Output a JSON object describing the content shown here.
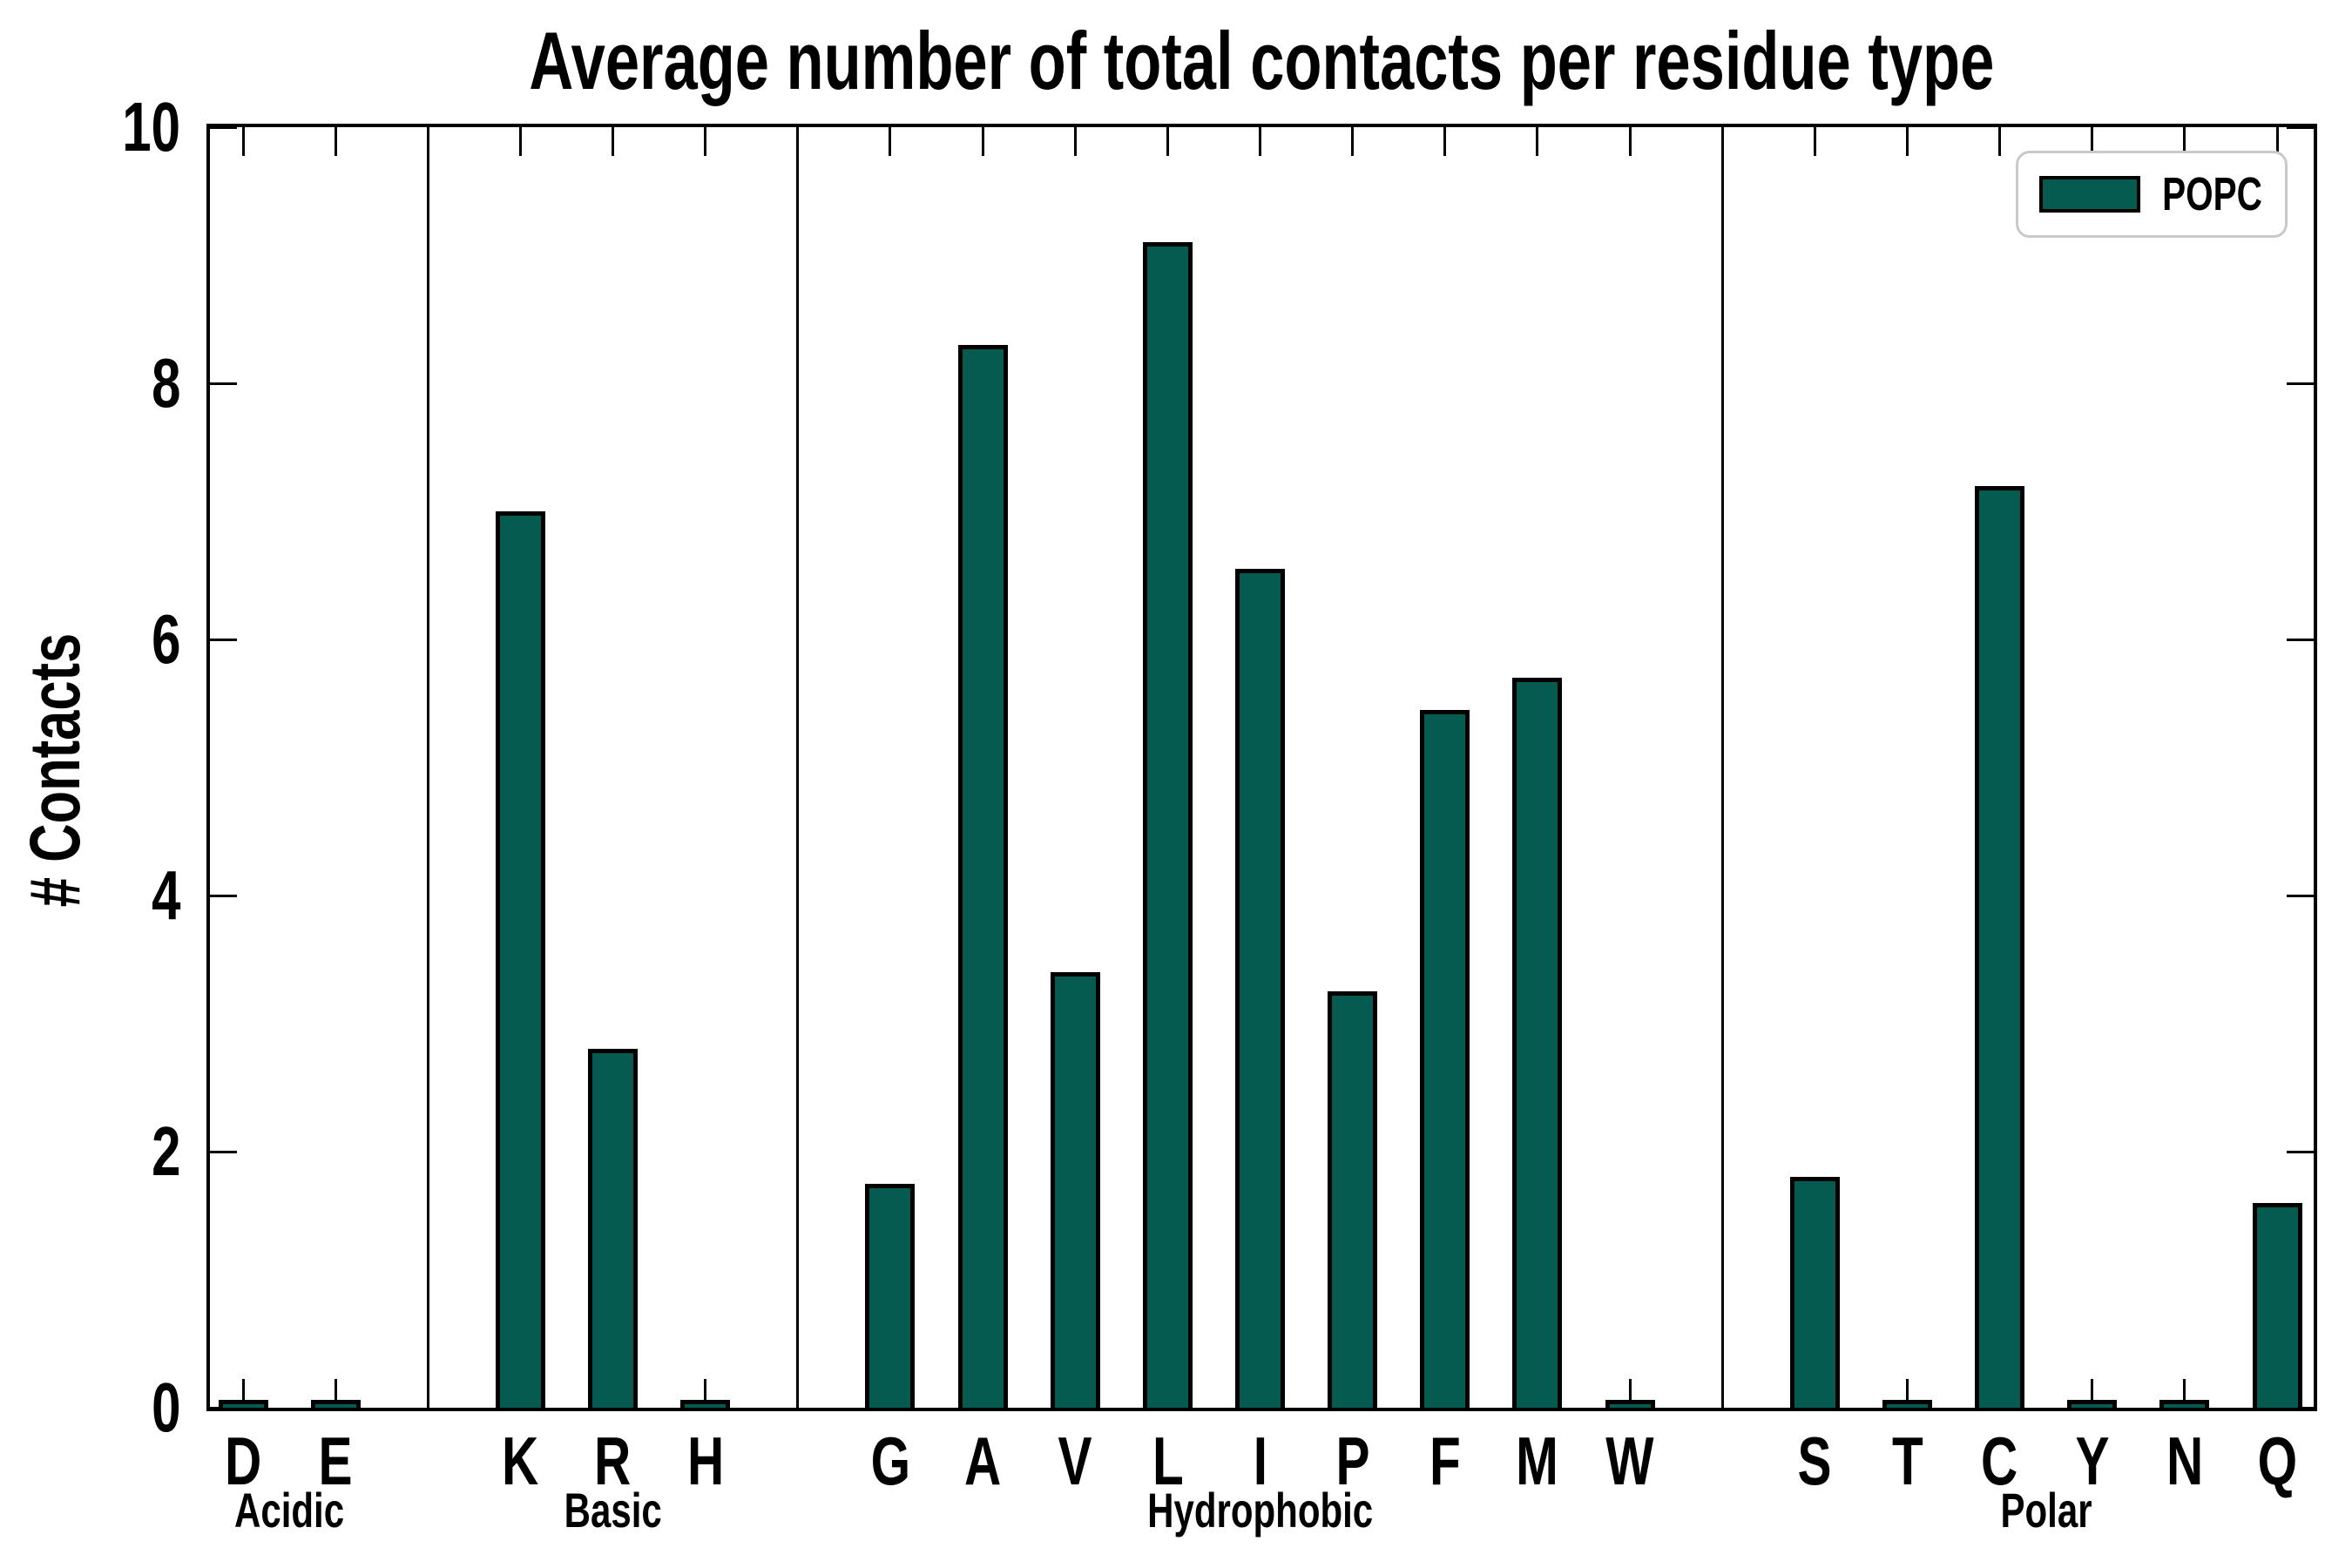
{
  "chart_data": {
    "type": "bar",
    "title": "Average number of total contacts per residue type",
    "ylabel": "# Contacts",
    "ylim": [
      0,
      10
    ],
    "yticks": [
      0,
      2,
      4,
      6,
      8,
      10
    ],
    "grid": false,
    "legend": {
      "label": "POPC",
      "position": "upper right"
    },
    "bar_color": "#065b50",
    "bar_edge_color": "#000000",
    "groups": [
      {
        "label": "Acidic",
        "categories": [
          "D",
          "E"
        ],
        "values": [
          0.03,
          0.03
        ]
      },
      {
        "label": "Basic",
        "categories": [
          "K",
          "R",
          "H"
        ],
        "values": [
          7.0,
          2.8,
          0.03
        ]
      },
      {
        "label": "Hydrophobic",
        "categories": [
          "G",
          "A",
          "V",
          "L",
          "I",
          "P",
          "F",
          "M",
          "W"
        ],
        "values": [
          1.75,
          8.3,
          3.4,
          9.1,
          6.55,
          3.25,
          5.45,
          5.7,
          0.03
        ]
      },
      {
        "label": "Polar",
        "categories": [
          "S",
          "T",
          "C",
          "Y",
          "N",
          "Q"
        ],
        "values": [
          1.8,
          0.03,
          7.2,
          0.03,
          0.03,
          1.6
        ]
      }
    ],
    "series": [
      {
        "name": "POPC"
      }
    ]
  }
}
